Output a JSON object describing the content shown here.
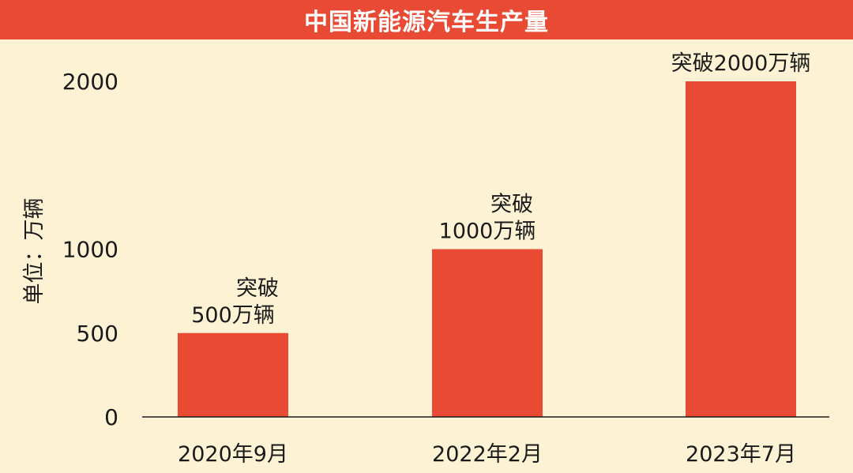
{
  "chart_data": {
    "type": "bar",
    "title": "中国新能源汽车生产量",
    "ylabel": "单位：万辆",
    "xlabel": "",
    "categories": [
      "2020年9月",
      "2022年2月",
      "2023年7月"
    ],
    "values": [
      500,
      1000,
      2000
    ],
    "data_labels": [
      [
        "突破",
        "500万辆"
      ],
      [
        "突破",
        "1000万辆"
      ],
      [
        "突破2000万辆"
      ]
    ],
    "yticks": [
      0,
      500,
      1000,
      2000
    ],
    "ylim": [
      0,
      2000
    ],
    "grid": false,
    "legend": "none",
    "bar_color": "#e84a34",
    "title_bar_color": "#e84a34",
    "background_color": "#fdf3d4"
  }
}
